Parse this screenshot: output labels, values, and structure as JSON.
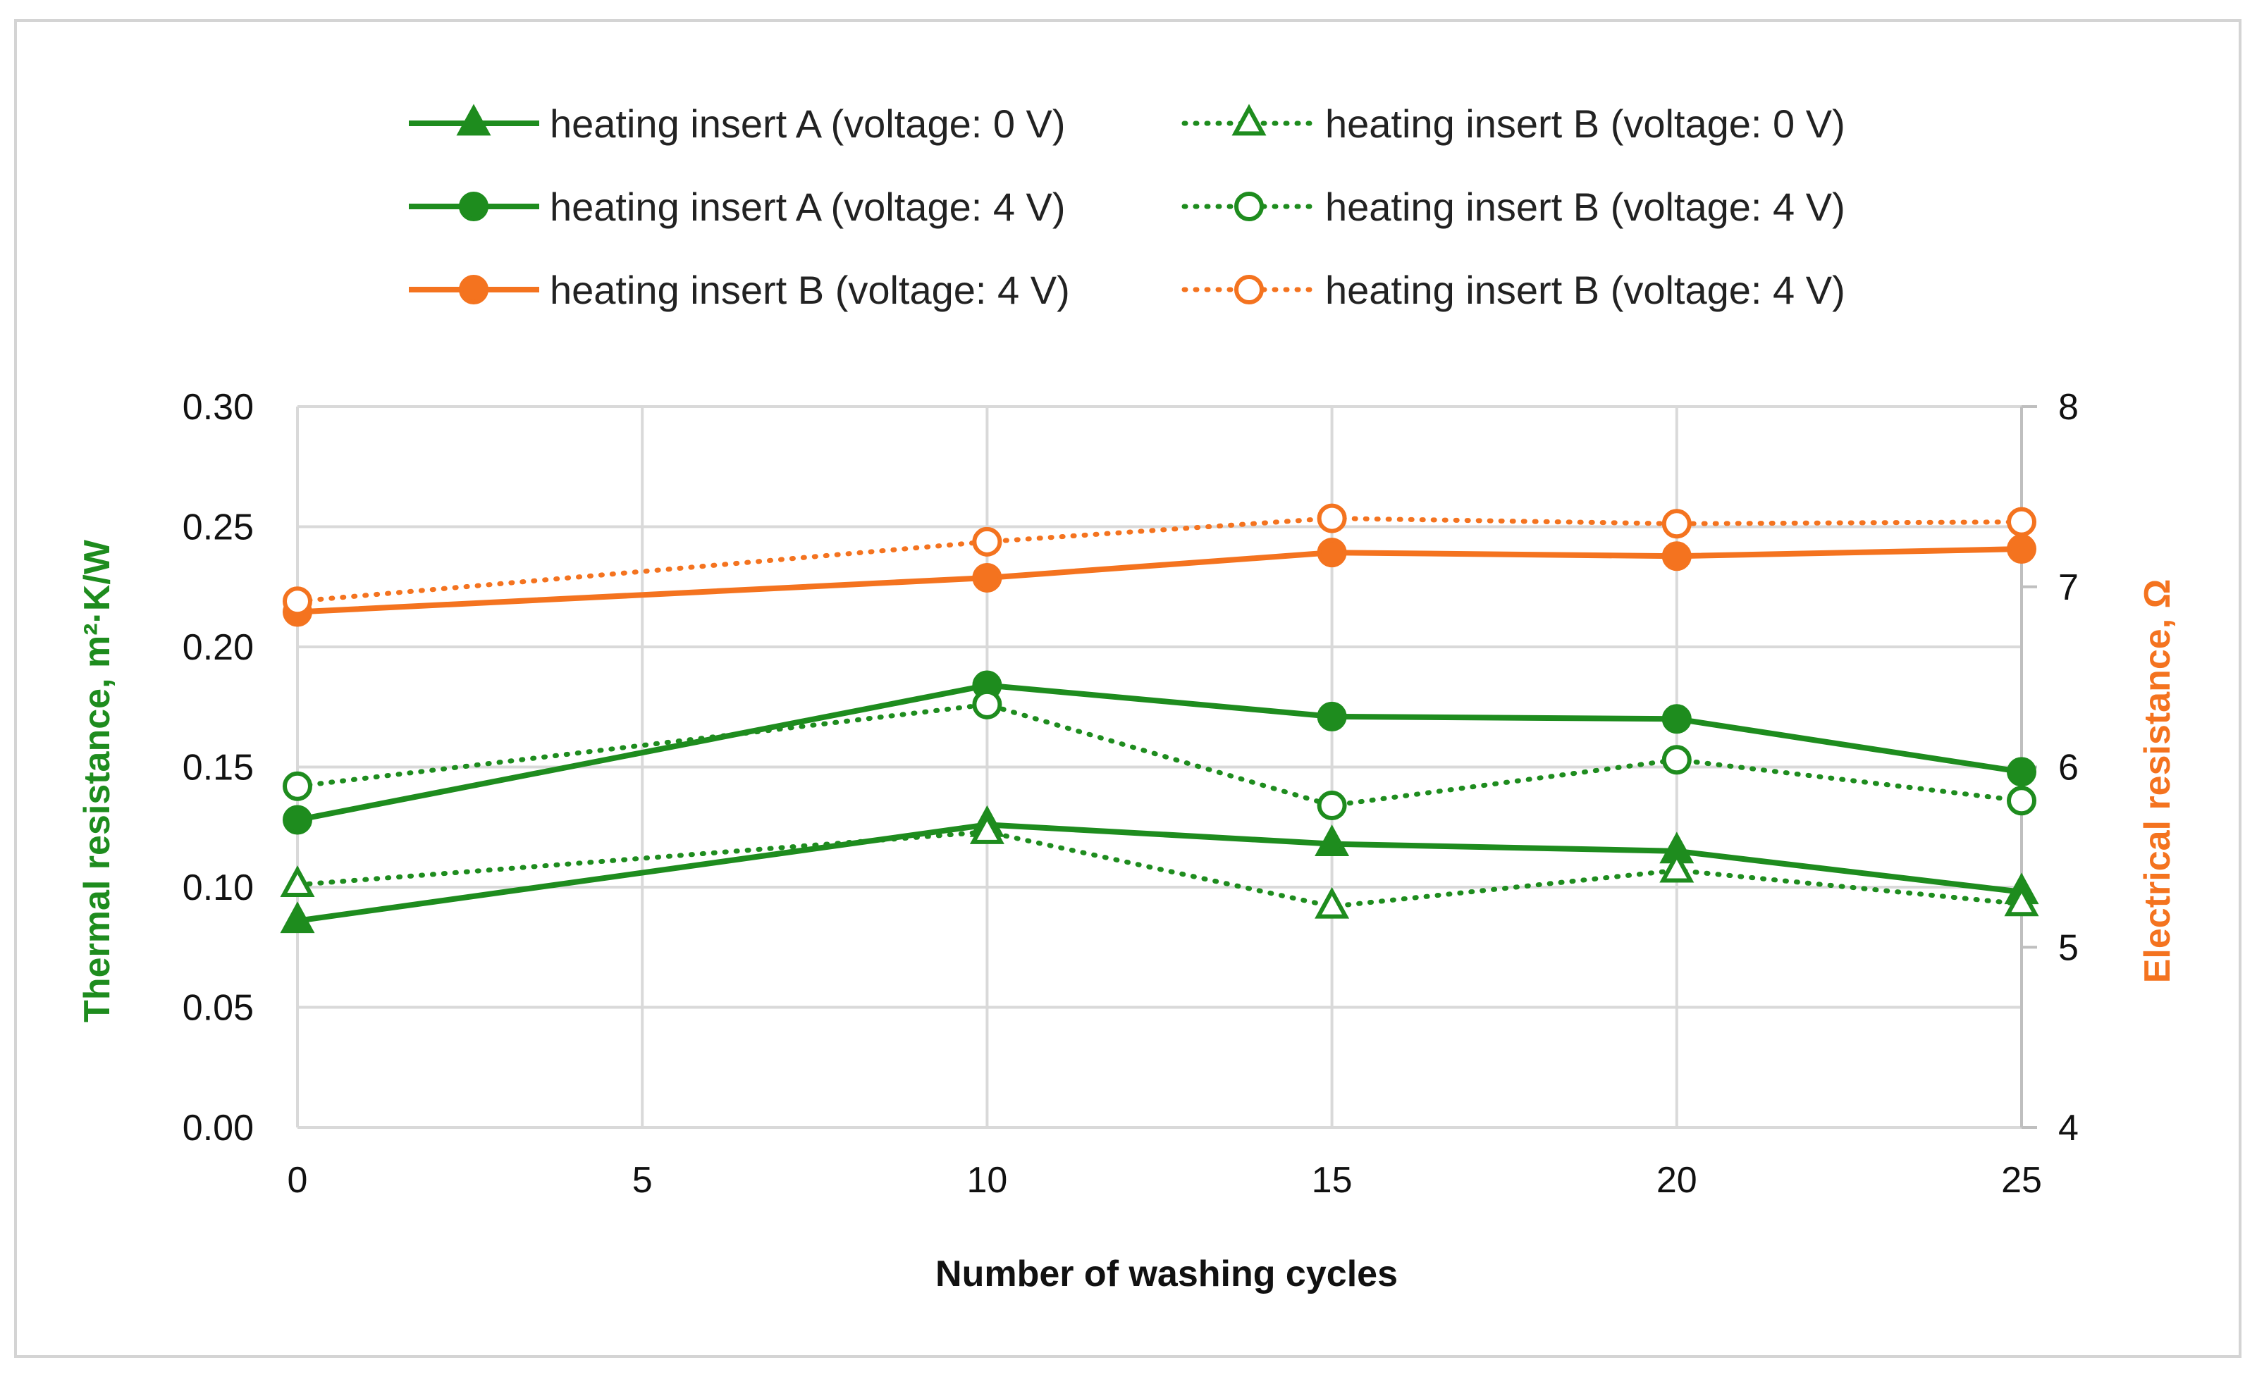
{
  "chart_data": {
    "type": "line",
    "title": "",
    "xlabel": "Number of washing cycles",
    "ylabel_left": "Thermal resistance, m²·K/W",
    "ylabel_right": "Electrical resistance, Ω",
    "xlim": [
      0,
      25
    ],
    "ylim_left": [
      0,
      0.3
    ],
    "ylim_right": [
      4,
      8
    ],
    "grid": true,
    "legend_position": "top",
    "x_ticks": [
      "0",
      "5",
      "10",
      "15",
      "20",
      "25"
    ],
    "y_left_ticks": [
      "0.00",
      "0.05",
      "0.10",
      "0.15",
      "0.20",
      "0.25",
      "0.30"
    ],
    "y_right_ticks": [
      "4",
      "5",
      "6",
      "7",
      "8"
    ],
    "colors": {
      "green": "#1e8c1e",
      "orange": "#f4731f",
      "grid": "#d9d9d9",
      "axis_title_left": "#1e8c1e",
      "axis_title_right": "#f4731f"
    },
    "series": [
      {
        "name": "heating insert A (voltage: 0 V)",
        "axis": "left",
        "color": "green",
        "style": "solid",
        "marker": "triangle",
        "filled": true,
        "x": [
          0,
          10,
          15,
          20,
          25
        ],
        "values": [
          0.086,
          0.126,
          0.118,
          0.115,
          0.098
        ]
      },
      {
        "name": "heating insert B (voltage: 0 V)",
        "axis": "left",
        "color": "green",
        "style": "dotted",
        "marker": "triangle",
        "filled": false,
        "x": [
          0,
          10,
          15,
          20,
          25
        ],
        "values": [
          0.101,
          0.123,
          0.092,
          0.107,
          0.093
        ]
      },
      {
        "name": "heating insert A (voltage: 4 V)",
        "axis": "left",
        "color": "green",
        "style": "solid",
        "marker": "circle",
        "filled": true,
        "x": [
          0,
          10,
          15,
          20,
          25
        ],
        "values": [
          0.128,
          0.184,
          0.171,
          0.17,
          0.148
        ]
      },
      {
        "name": "heating insert B (voltage: 4 V)",
        "axis": "left",
        "color": "green",
        "style": "dotted",
        "marker": "circle",
        "filled": false,
        "x": [
          0,
          10,
          15,
          20,
          25
        ],
        "values": [
          0.142,
          0.176,
          0.134,
          0.153,
          0.136
        ]
      },
      {
        "name": "heating insert B (voltage: 4 V)",
        "axis": "right",
        "color": "orange",
        "style": "solid",
        "marker": "circle",
        "filled": true,
        "x": [
          0,
          10,
          15,
          20,
          25
        ],
        "values": [
          6.86,
          7.05,
          7.19,
          7.17,
          7.21
        ]
      },
      {
        "name": "heating insert B (voltage: 4 V)",
        "axis": "right",
        "color": "orange",
        "style": "dotted",
        "marker": "circle",
        "filled": false,
        "x": [
          0,
          10,
          15,
          20,
          25
        ],
        "values": [
          6.92,
          7.25,
          7.38,
          7.35,
          7.36
        ]
      }
    ]
  }
}
